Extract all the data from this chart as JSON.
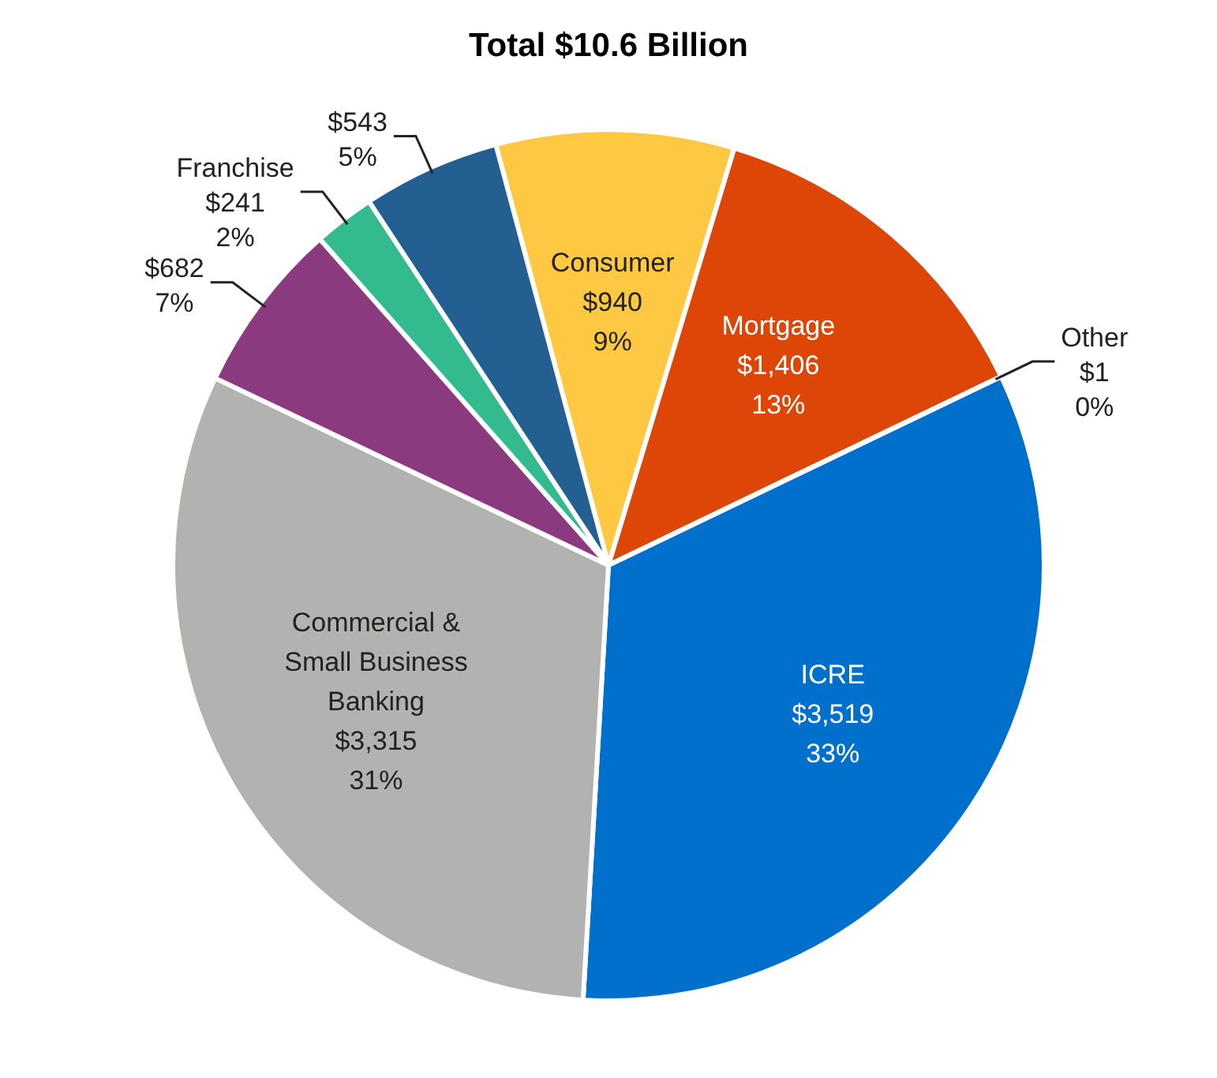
{
  "chart_data": {
    "type": "pie",
    "title": "Total $10.6 Billion",
    "categories": [
      "Consumer",
      "Mortgage",
      "Other",
      "ICRE",
      "Commercial & Small Business Banking",
      null,
      "Franchise",
      null
    ],
    "values": [
      940,
      1406,
      1,
      3519,
      3315,
      682,
      241,
      543
    ],
    "colors": [
      "#ffc843",
      "#dd4607",
      "#7f7f7f",
      "#0070cc",
      "#b2b3b1",
      "#8b3a80",
      "#33bb8f",
      "#245f91"
    ],
    "value_labels": [
      "$940\n9%",
      "$1,406\n13%",
      "$1\n0%",
      "$3,519\n33%",
      "$3,315\n31%",
      "$682\n7%",
      "$241\n2%",
      "$543\n5%"
    ],
    "legend": false
  }
}
